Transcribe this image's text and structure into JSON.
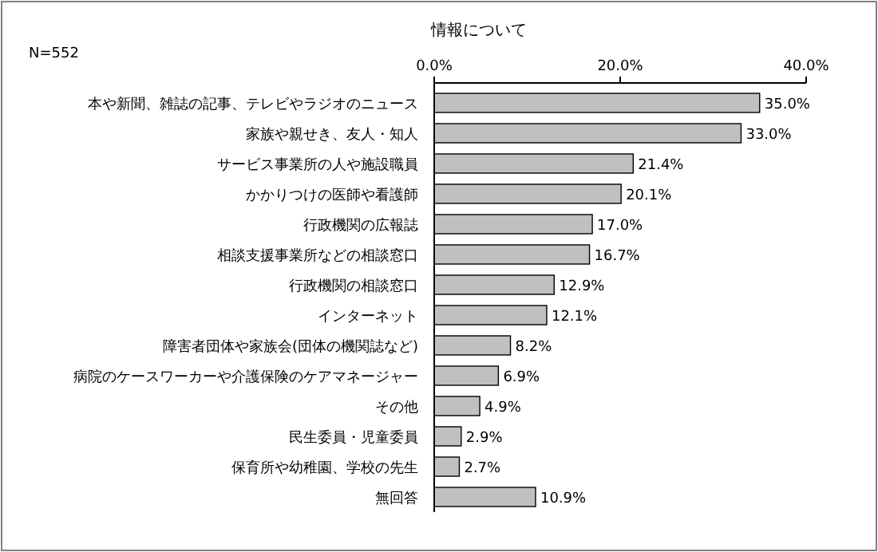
{
  "chart_data": {
    "type": "bar",
    "orientation": "horizontal",
    "title": "情報について",
    "annotations": [
      "N=552"
    ],
    "categories": [
      "本や新聞、雑誌の記事、テレビやラジオのニュース",
      "家族や親せき、友人・知人",
      "サービス事業所の人や施設職員",
      "かかりつけの医師や看護師",
      "行政機関の広報誌",
      "相談支援事業所などの相談窓口",
      "行政機関の相談窓口",
      "インターネット",
      "障害者団体や家族会(団体の機関誌など)",
      "病院のケースワーカーや介護保険のケアマネージャー",
      "その他",
      "民生委員・児童委員",
      "保育所や幼稚園、学校の先生",
      "無回答"
    ],
    "values": [
      35.0,
      33.0,
      21.4,
      20.1,
      17.0,
      16.7,
      12.9,
      12.1,
      8.2,
      6.9,
      4.9,
      2.9,
      2.7,
      10.9
    ],
    "value_labels": [
      "35.0%",
      "33.0%",
      "21.4%",
      "20.1%",
      "17.0%",
      "16.7%",
      "12.9%",
      "12.1%",
      "8.2%",
      "6.9%",
      "4.9%",
      "2.9%",
      "2.7%",
      "10.9%"
    ],
    "color": "#c0c0c0",
    "xlim": [
      0,
      40
    ],
    "xticks": [
      {
        "value": 0,
        "label": "0.0%"
      },
      {
        "value": 20,
        "label": "20.0%"
      },
      {
        "value": 40,
        "label": "40.0%"
      }
    ]
  }
}
